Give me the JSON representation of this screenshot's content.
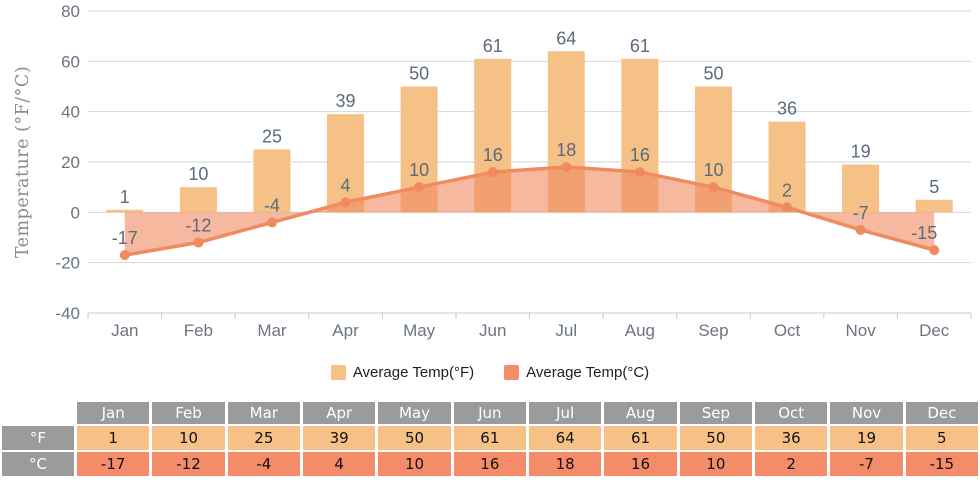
{
  "colors": {
    "bar": "#f6c187",
    "line": "#f08a5f",
    "area": "#f08a5f",
    "area_opacity": 0.6,
    "grid": "#d4d4d4",
    "axis": "#c9c9c9",
    "legend_f_swatch": "#f6c187",
    "legend_c_swatch": "#f48c69",
    "table_header_bg": "#9b9b9b",
    "table_f_bg": "#f6c187",
    "table_c_bg": "#f48c69"
  },
  "chart_data": {
    "type": "bar",
    "subtype": "bar+line combo",
    "categories": [
      "Jan",
      "Feb",
      "Mar",
      "Apr",
      "May",
      "Jun",
      "Jul",
      "Aug",
      "Sep",
      "Oct",
      "Nov",
      "Dec"
    ],
    "series": [
      {
        "name": "Average Temp(°F)",
        "type": "bar",
        "values": [
          1,
          10,
          25,
          39,
          50,
          61,
          64,
          61,
          50,
          36,
          19,
          5
        ]
      },
      {
        "name": "Average Temp(°C)",
        "type": "line",
        "values": [
          -17,
          -12,
          -4,
          4,
          10,
          16,
          18,
          16,
          10,
          2,
          -7,
          -15
        ]
      }
    ],
    "title": "",
    "xlabel": "",
    "ylabel": "Temperature (°F/°C)",
    "ylim": [
      -40,
      80
    ],
    "yticks": [
      80,
      60,
      40,
      20,
      0,
      -20,
      -40
    ],
    "grid": true,
    "legend_position": "bottom",
    "data_labels": true
  },
  "legend": {
    "items": [
      {
        "label": "Average Temp(°F)",
        "color": "#f6c187"
      },
      {
        "label": "Average Temp(°C)",
        "color": "#f48c69"
      }
    ]
  },
  "table": {
    "corner": "",
    "months": [
      "Jan",
      "Feb",
      "Mar",
      "Apr",
      "May",
      "Jun",
      "Jul",
      "Aug",
      "Sep",
      "Oct",
      "Nov",
      "Dec"
    ],
    "rows": [
      {
        "label": "°F",
        "values": [
          "1",
          "10",
          "25",
          "39",
          "50",
          "61",
          "64",
          "61",
          "50",
          "36",
          "19",
          "5"
        ]
      },
      {
        "label": "°C",
        "values": [
          "-17",
          "-12",
          "-4",
          "4",
          "10",
          "16",
          "18",
          "16",
          "10",
          "2",
          "-7",
          "-15"
        ]
      }
    ]
  }
}
